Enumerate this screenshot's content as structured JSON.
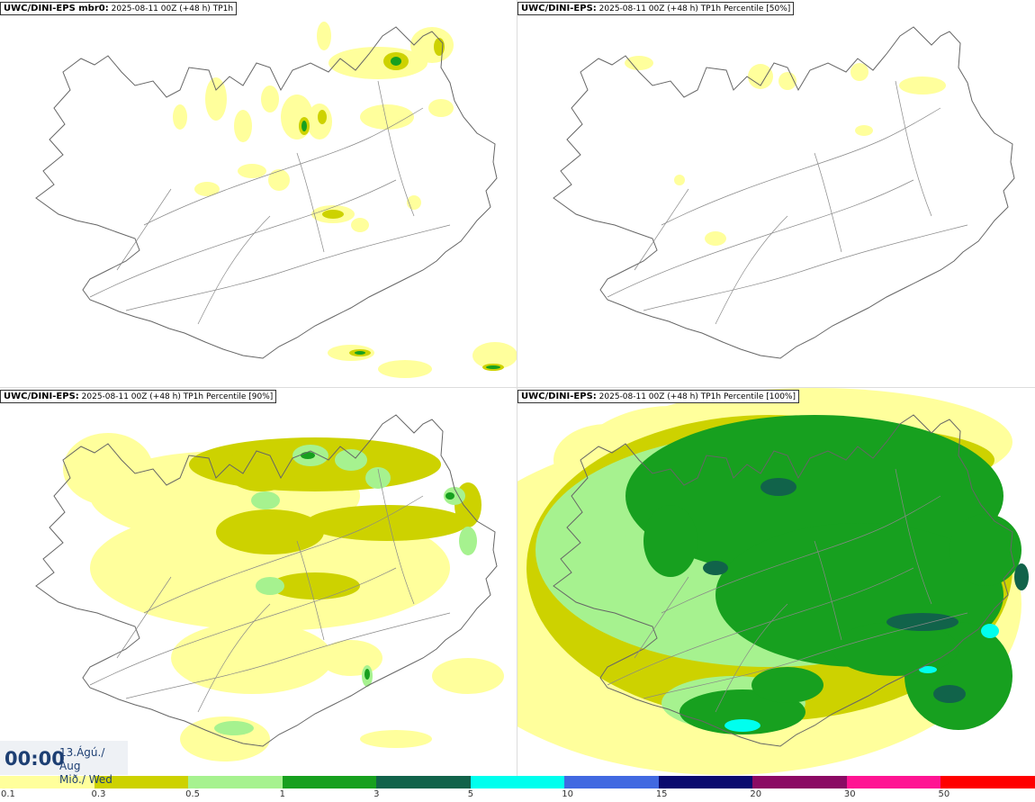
{
  "panels": [
    {
      "model": "UWC/DINI-EPS mbr0",
      "sep": ":",
      "run": "2025-08-11 00Z (+48 h)",
      "field": "TP1h"
    },
    {
      "model": "UWC/DINI-EPS",
      "sep": ":",
      "run": "2025-08-11 00Z (+48 h)",
      "field": "TP1h Percentile [50%]"
    },
    {
      "model": "UWC/DINI-EPS",
      "sep": ":",
      "run": "2025-08-11 00Z (+48 h)",
      "field": "TP1h Percentile [90%]"
    },
    {
      "model": "UWC/DINI-EPS",
      "sep": ":",
      "run": "2025-08-11 00Z (+48 h)",
      "field": "TP1h Percentile [100%]"
    }
  ],
  "valid_time": {
    "hour": "00:00",
    "date_line1": "13.Ágú./ Aug",
    "date_line2": "Mið./ Wed"
  },
  "legend": {
    "ticks": [
      "0.1",
      "0.3",
      "0.5",
      "1",
      "3",
      "5",
      "10",
      "15",
      "20",
      "30",
      "50"
    ],
    "colors": [
      "#ffff9c",
      "#cdd200",
      "#a6f28f",
      "#17a01f",
      "#11634a",
      "#00ffee",
      "#4169e1",
      "#0a0a6e",
      "#8b0a64",
      "#ff1493",
      "#ff0000"
    ]
  }
}
